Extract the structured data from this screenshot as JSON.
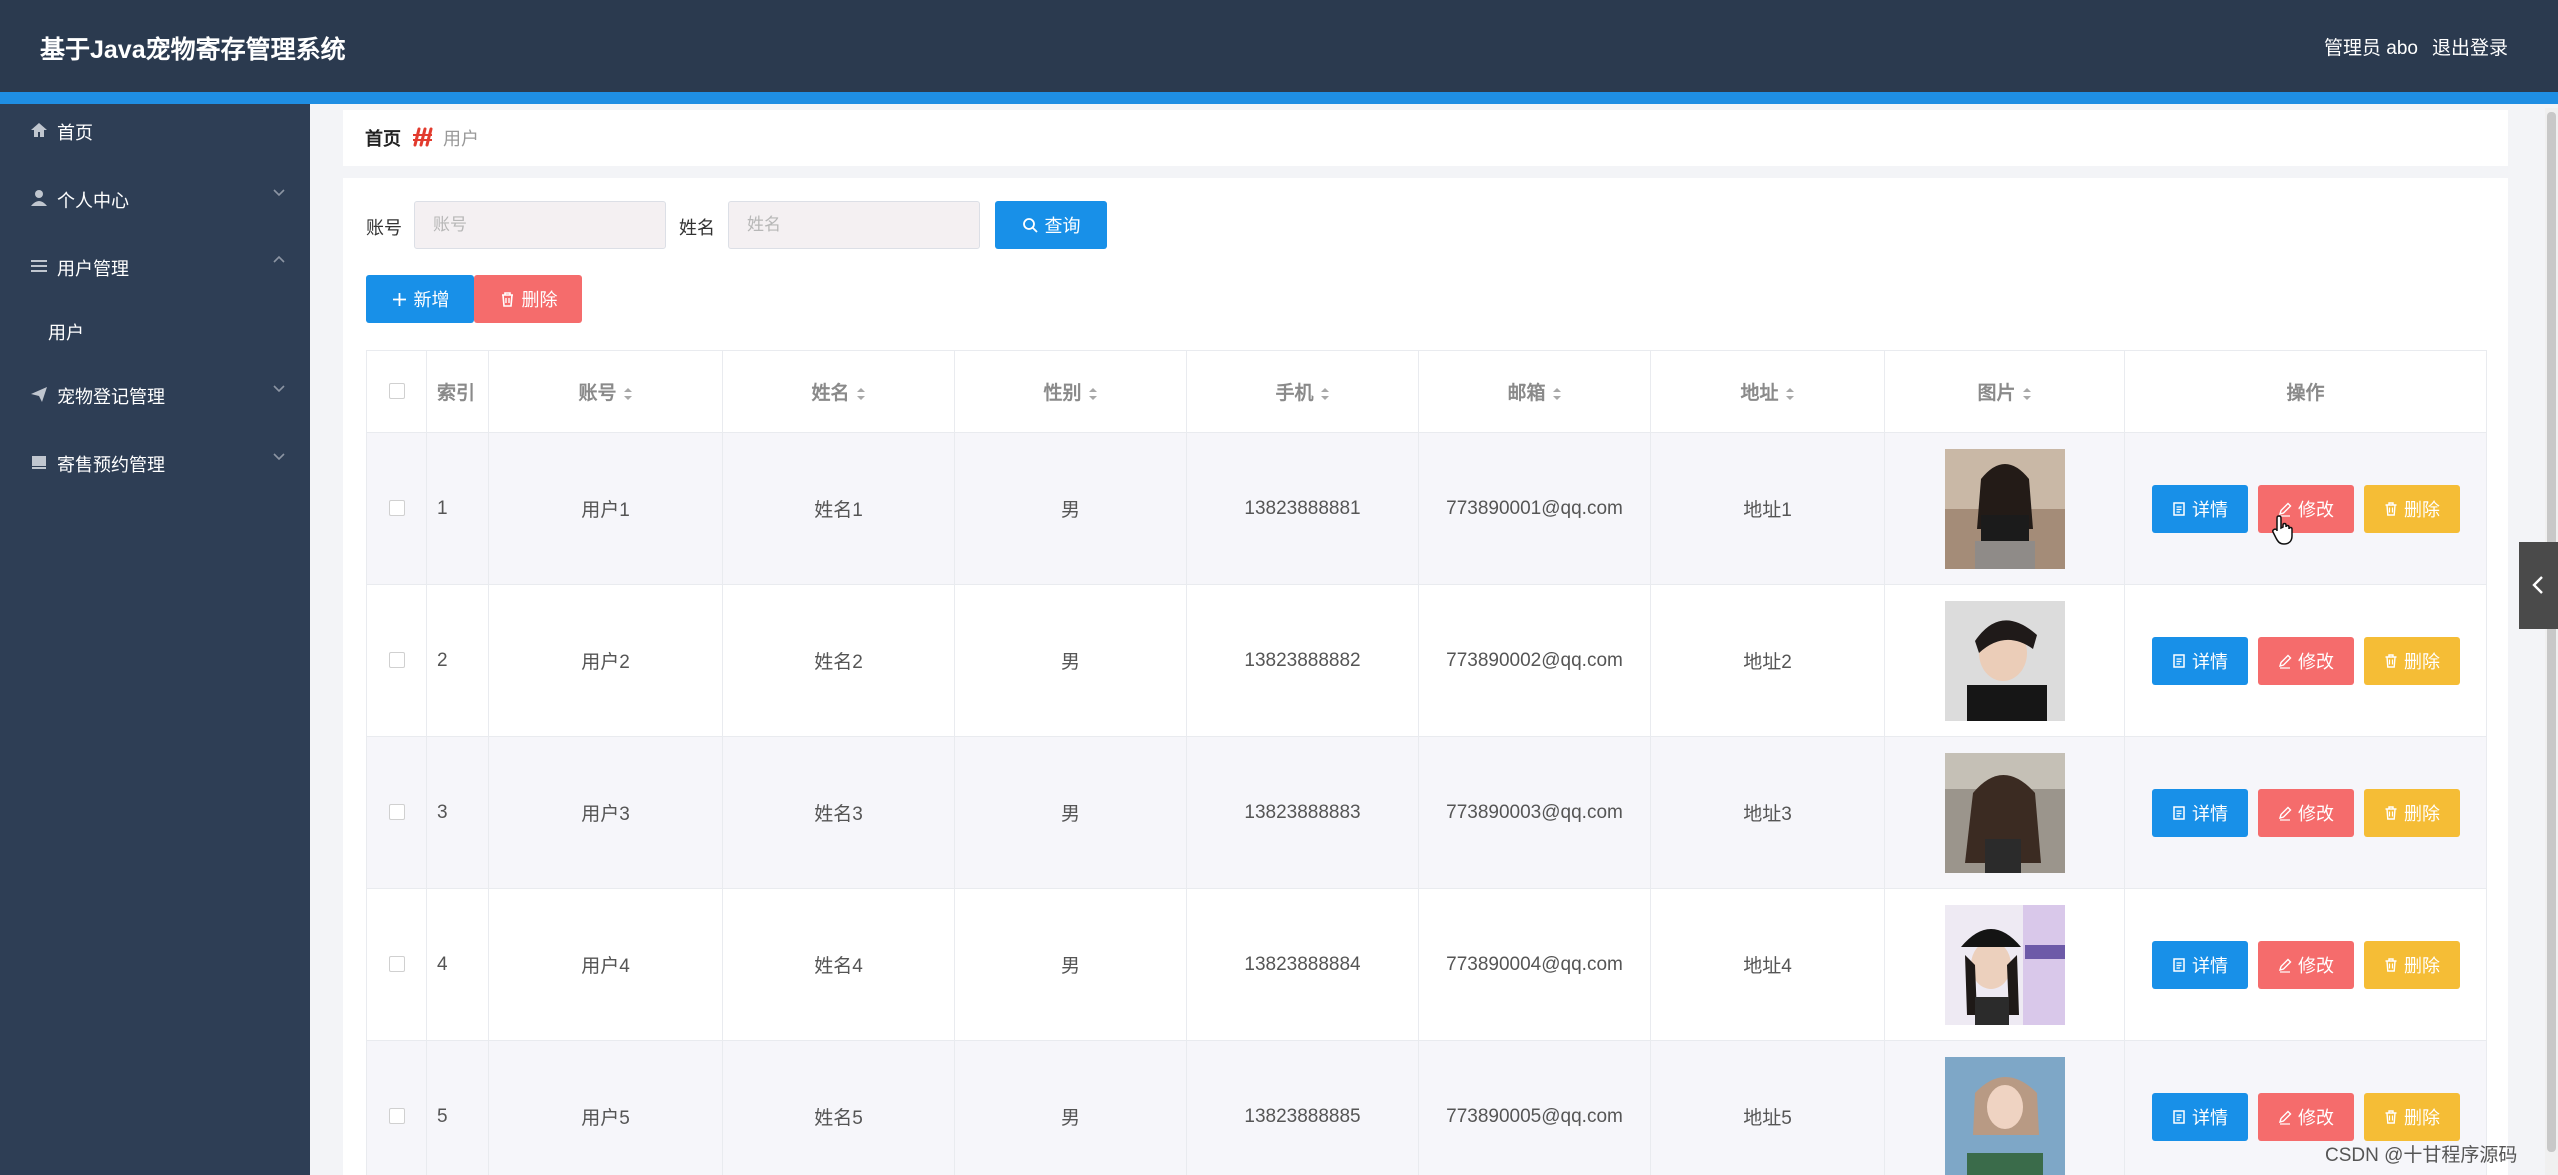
{
  "header": {
    "title": "基于Java宠物寄存管理系统",
    "user": "管理员 abo",
    "logout": "退出登录"
  },
  "sidebar": {
    "items": [
      {
        "label": "首页",
        "icon": "home-icon"
      },
      {
        "label": "个人中心",
        "icon": "person-icon"
      },
      {
        "label": "用户管理",
        "icon": "list-icon"
      },
      {
        "label": "用户"
      },
      {
        "label": "宠物登记管理",
        "icon": "send-icon"
      },
      {
        "label": "寄售预约管理",
        "icon": "stack-icon"
      }
    ]
  },
  "breadcrumb": {
    "home": "首页",
    "current": "用户"
  },
  "search": {
    "account_label": "账号",
    "account_placeholder": "账号",
    "name_label": "姓名",
    "name_placeholder": "姓名",
    "query": "查询"
  },
  "toolbar": {
    "add": "新增",
    "delete": "删除"
  },
  "table": {
    "headers": {
      "index": "索引",
      "account": "账号",
      "name": "姓名",
      "gender": "性别",
      "phone": "手机",
      "email": "邮箱",
      "address": "地址",
      "image": "图片",
      "actions": "操作"
    },
    "rows": [
      {
        "index": "1",
        "account": "用户1",
        "name": "姓名1",
        "gender": "男",
        "phone": "13823888881",
        "email": "773890001@qq.com",
        "address": "地址1"
      },
      {
        "index": "2",
        "account": "用户2",
        "name": "姓名2",
        "gender": "男",
        "phone": "13823888882",
        "email": "773890002@qq.com",
        "address": "地址2"
      },
      {
        "index": "3",
        "account": "用户3",
        "name": "姓名3",
        "gender": "男",
        "phone": "13823888883",
        "email": "773890003@qq.com",
        "address": "地址3"
      },
      {
        "index": "4",
        "account": "用户4",
        "name": "姓名4",
        "gender": "男",
        "phone": "13823888884",
        "email": "773890004@qq.com",
        "address": "地址4"
      },
      {
        "index": "5",
        "account": "用户5",
        "name": "姓名5",
        "gender": "男",
        "phone": "13823888885",
        "email": "773890005@qq.com",
        "address": "地址5"
      }
    ],
    "actions": {
      "detail": "详情",
      "edit": "修改",
      "delete": "删除"
    }
  },
  "watermark": "CSDN @十甘程序源码",
  "colors": {
    "header": "#2b3a4f",
    "sidebar": "#2e3e55",
    "accent": "#1f8ee3",
    "primary": "#1890e8",
    "danger": "#f56c6c",
    "warning": "#f5bd36"
  }
}
